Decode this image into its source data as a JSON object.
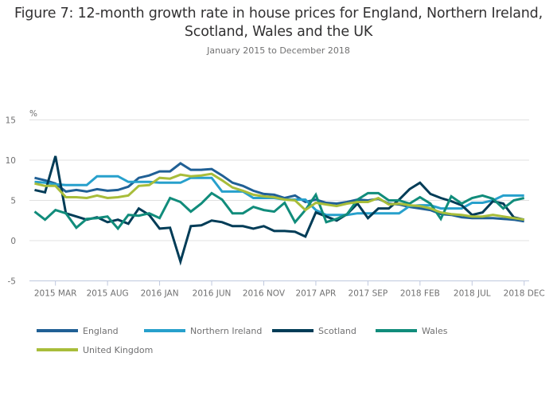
{
  "chart_data": {
    "type": "line",
    "title": "Figure 7: 12-month growth rate in house prices for England, Northern Ireland, Scotland, Wales and the UK",
    "subtitle": "January 2015 to December 2018",
    "xlabel": "",
    "ylabel": "%",
    "ylim": [
      -5,
      15
    ],
    "yticks": [
      15,
      10,
      5,
      0,
      -5
    ],
    "grid": true,
    "legend_position": "bottom",
    "x": [
      "2015 JAN",
      "2015 FEB",
      "2015 MAR",
      "2015 APR",
      "2015 MAY",
      "2015 JUN",
      "2015 JUL",
      "2015 AUG",
      "2015 SEP",
      "2015 OCT",
      "2015 NOV",
      "2015 DEC",
      "2016 JAN",
      "2016 FEB",
      "2016 MAR",
      "2016 APR",
      "2016 MAY",
      "2016 JUN",
      "2016 JUL",
      "2016 AUG",
      "2016 SEP",
      "2016 OCT",
      "2016 NOV",
      "2016 DEC",
      "2017 JAN",
      "2017 FEB",
      "2017 MAR",
      "2017 APR",
      "2017 MAY",
      "2017 JUN",
      "2017 JUL",
      "2017 AUG",
      "2017 SEP",
      "2017 OCT",
      "2017 NOV",
      "2017 DEC",
      "2018 JAN",
      "2018 FEB",
      "2018 MAR",
      "2018 APR",
      "2018 MAY",
      "2018 JUN",
      "2018 JUL",
      "2018 AUG",
      "2018 SEP",
      "2018 OCT",
      "2018 NOV",
      "2018 DEC"
    ],
    "xtick_labels": [
      {
        "index": 2,
        "label": "2015 MAR"
      },
      {
        "index": 7,
        "label": "2015 AUG"
      },
      {
        "index": 12,
        "label": "2016 JAN"
      },
      {
        "index": 17,
        "label": "2016 JUN"
      },
      {
        "index": 22,
        "label": "2016 NOV"
      },
      {
        "index": 27,
        "label": "2017 APR"
      },
      {
        "index": 32,
        "label": "2017 SEP"
      },
      {
        "index": 37,
        "label": "2018 FEB"
      },
      {
        "index": 42,
        "label": "2018 JUL"
      },
      {
        "index": 47,
        "label": "2018 DEC"
      }
    ],
    "series": [
      {
        "name": "England",
        "color": "#206095",
        "values": [
          7.8,
          7.5,
          7.1,
          6.1,
          6.3,
          6.1,
          6.4,
          6.2,
          6.3,
          6.7,
          7.8,
          8.1,
          8.6,
          8.6,
          9.6,
          8.8,
          8.8,
          8.9,
          8.1,
          7.2,
          6.8,
          6.2,
          5.8,
          5.7,
          5.3,
          5.6,
          4.8,
          5.1,
          4.7,
          4.6,
          4.8,
          5.1,
          5.0,
          5.2,
          4.6,
          4.5,
          4.2,
          4.0,
          3.8,
          3.3,
          3.2,
          2.9,
          2.8,
          2.8,
          2.8,
          2.7,
          2.6,
          2.4
        ]
      },
      {
        "name": "Northern Ireland",
        "color": "#27a0cc",
        "values": [
          7.3,
          7.2,
          7.0,
          6.9,
          6.9,
          6.9,
          8.0,
          8.0,
          8.0,
          7.3,
          7.3,
          7.3,
          7.2,
          7.2,
          7.2,
          7.8,
          7.8,
          7.8,
          6.1,
          6.1,
          6.1,
          5.3,
          5.3,
          5.3,
          5.1,
          5.1,
          5.1,
          3.8,
          3.2,
          3.2,
          3.2,
          3.4,
          3.4,
          3.4,
          3.4,
          3.4,
          4.3,
          4.4,
          4.4,
          4.0,
          4.0,
          4.0,
          4.7,
          4.7,
          5.0,
          5.6,
          5.6,
          5.6
        ]
      },
      {
        "name": "Scotland",
        "color": "#003c57",
        "values": [
          6.3,
          6.0,
          10.5,
          3.4,
          3.0,
          2.6,
          2.9,
          2.3,
          2.6,
          2.1,
          4.0,
          3.2,
          1.5,
          1.6,
          -2.6,
          1.8,
          1.9,
          2.5,
          2.3,
          1.8,
          1.8,
          1.5,
          1.8,
          1.2,
          1.2,
          1.1,
          0.5,
          3.5,
          3.0,
          2.5,
          3.3,
          4.6,
          2.8,
          4.0,
          4.0,
          5.1,
          6.4,
          7.2,
          5.8,
          5.3,
          4.9,
          4.4,
          3.2,
          3.5,
          4.9,
          4.6,
          2.9,
          2.6
        ]
      },
      {
        "name": "Wales",
        "color": "#118c7b",
        "values": [
          3.6,
          2.6,
          3.8,
          3.4,
          1.6,
          2.7,
          2.8,
          3.0,
          1.5,
          3.2,
          3.1,
          3.4,
          2.8,
          5.3,
          4.8,
          3.6,
          4.6,
          5.9,
          5.1,
          3.4,
          3.4,
          4.2,
          3.8,
          3.6,
          4.7,
          2.3,
          3.8,
          5.7,
          2.3,
          2.7,
          3.3,
          5.1,
          5.9,
          5.9,
          5.0,
          5.0,
          4.6,
          5.4,
          4.6,
          2.7,
          5.5,
          4.6,
          5.3,
          5.6,
          5.2,
          4.0,
          5.0,
          5.3
        ]
      },
      {
        "name": "United Kingdom",
        "color": "#a8bd3a",
        "values": [
          7.1,
          6.8,
          6.8,
          5.4,
          5.4,
          5.3,
          5.6,
          5.3,
          5.4,
          5.6,
          6.8,
          6.9,
          7.8,
          7.7,
          8.2,
          8.0,
          8.1,
          8.3,
          7.5,
          6.6,
          6.2,
          5.7,
          5.5,
          5.4,
          5.1,
          5.0,
          3.8,
          4.7,
          4.5,
          4.3,
          4.6,
          4.8,
          4.8,
          5.3,
          4.5,
          4.6,
          4.4,
          4.3,
          4.0,
          3.5,
          3.3,
          3.2,
          3.0,
          3.0,
          3.2,
          3.0,
          2.8,
          2.6
        ]
      }
    ]
  },
  "legend": {
    "items": [
      {
        "label": "England",
        "color": "#206095"
      },
      {
        "label": "Northern Ireland",
        "color": "#27a0cc"
      },
      {
        "label": "Scotland",
        "color": "#003c57"
      },
      {
        "label": "Wales",
        "color": "#118c7b"
      },
      {
        "label": "United Kingdom",
        "color": "#a8bd3a"
      }
    ]
  },
  "colors": {
    "gridline": "#e0e0e0",
    "axis": "#bfc8de",
    "text": "#707071",
    "title": "#323132"
  }
}
